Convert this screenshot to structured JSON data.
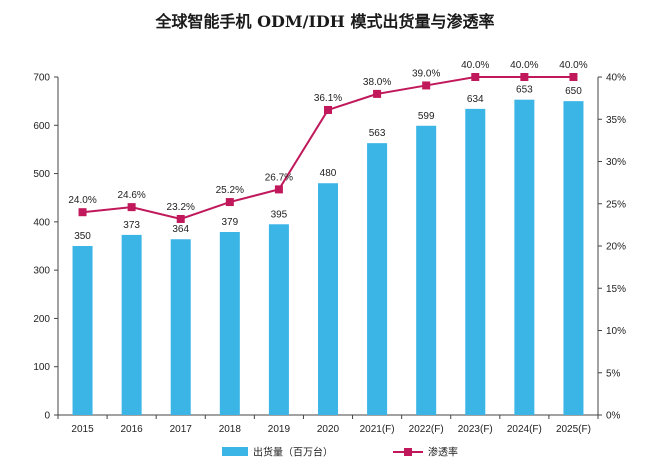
{
  "title": "全球智能手机 ODM/IDH 模式出货量与渗透率",
  "chart_data": {
    "type": "bar+line",
    "title": "全球智能手机 ODM/IDH 模式出货量与渗透率",
    "categories": [
      "2015",
      "2016",
      "2017",
      "2018",
      "2019",
      "2020",
      "2021(F)",
      "2022(F)",
      "2023(F)",
      "2024(F)",
      "2025(F)"
    ],
    "series": [
      {
        "name": "出货量（百万台）",
        "type": "bar",
        "axis": "left",
        "color": "#3bb4e6",
        "values": [
          350,
          373,
          364,
          379,
          395,
          480,
          563,
          599,
          634,
          653,
          650
        ],
        "labels": [
          "350",
          "373",
          "364",
          "379",
          "395",
          "480",
          "563",
          "599",
          "634",
          "653",
          "650"
        ]
      },
      {
        "name": "渗透率",
        "type": "line",
        "axis": "right",
        "color": "#c0185a",
        "values": [
          24.0,
          24.6,
          23.2,
          25.2,
          26.7,
          36.1,
          38.0,
          39.0,
          40.0,
          40.0,
          40.0
        ],
        "labels": [
          "24.0%",
          "24.6%",
          "23.2%",
          "25.2%",
          "26.7%",
          "36.1%",
          "38.0%",
          "39.0%",
          "40.0%",
          "40.0%",
          "40.0%"
        ]
      }
    ],
    "ylim_left": [
      0,
      700
    ],
    "yticks_left": [
      "0",
      "100",
      "200",
      "300",
      "400",
      "500",
      "600",
      "700"
    ],
    "ylim_right": [
      0,
      40
    ],
    "yticks_right": [
      "0%",
      "5%",
      "10%",
      "15%",
      "20%",
      "25%",
      "30%",
      "35%",
      "40%"
    ],
    "legend": {
      "position": "bottom",
      "items": [
        "出货量（百万台）",
        "渗透率"
      ]
    },
    "grid": false
  }
}
